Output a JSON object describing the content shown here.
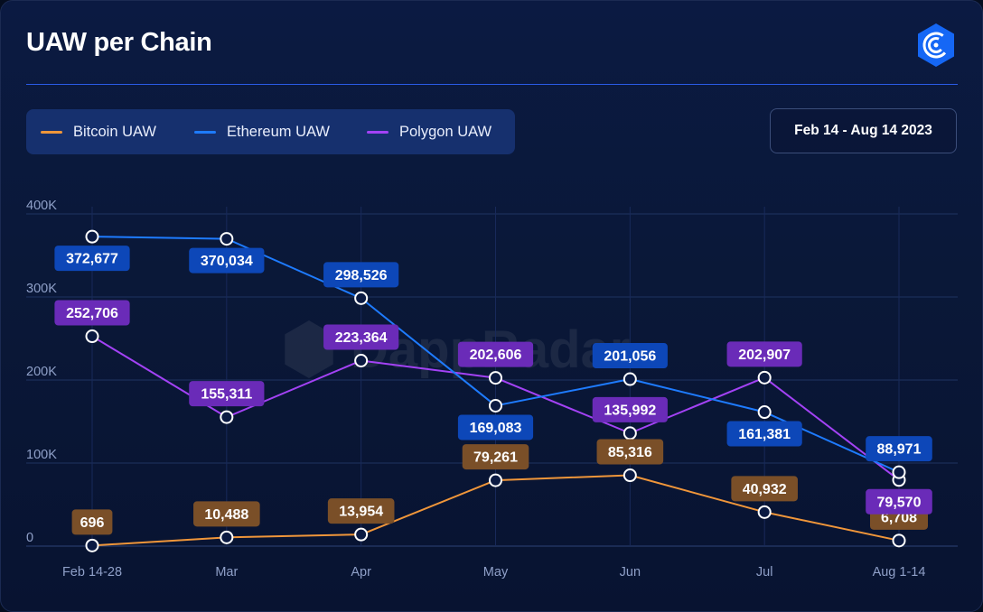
{
  "header": {
    "title": "UAW per Chain"
  },
  "logo": {
    "icon": "dappradar-logo-icon",
    "color": "#1567f5"
  },
  "watermark": {
    "text": "DappRadar"
  },
  "date_range": {
    "label": "Feb 14 - Aug 14 2023"
  },
  "legend": {
    "placement": "top-left",
    "items": [
      {
        "label": "Bitcoin UAW",
        "color": "#f0963a"
      },
      {
        "label": "Ethereum UAW",
        "color": "#1e7bff"
      },
      {
        "label": "Polygon UAW",
        "color": "#a342f5"
      }
    ]
  },
  "colors": {
    "background": "#0a1838",
    "grid": "#1f3361",
    "bitcoin_label_bg": "#7a4f28",
    "ethereum_label_bg": "#0d47b8",
    "polygon_label_bg": "#6a2bb8"
  },
  "chart_data": {
    "type": "line",
    "categories": [
      "Feb 14-28",
      "Mar",
      "Apr",
      "May",
      "Jun",
      "Jul",
      "Aug 1-14"
    ],
    "y_ticks": [
      {
        "value": 0,
        "label": "0"
      },
      {
        "value": 100000,
        "label": "100K"
      },
      {
        "value": 200000,
        "label": "200K"
      },
      {
        "value": 300000,
        "label": "300K"
      },
      {
        "value": 400000,
        "label": "400K"
      }
    ],
    "ylim": [
      0,
      400000
    ],
    "grid": true,
    "series": [
      {
        "name": "Bitcoin UAW",
        "color": "#f0963a",
        "label_bg": "#7a4f28",
        "values": [
          696,
          10488,
          13954,
          79261,
          85316,
          40932,
          6708
        ],
        "labels": [
          "696",
          "10,488",
          "13,954",
          "79,261",
          "85,316",
          "40,932",
          "6,708"
        ],
        "label_pos": [
          "above",
          "above",
          "above",
          "above",
          "above",
          "above",
          "above"
        ]
      },
      {
        "name": "Ethereum UAW",
        "color": "#1e7bff",
        "label_bg": "#0d47b8",
        "values": [
          372677,
          370034,
          298526,
          169083,
          201056,
          161381,
          88971
        ],
        "labels": [
          "372,677",
          "370,034",
          "298,526",
          "169,083",
          "201,056",
          "161,381",
          "88,971"
        ],
        "label_pos": [
          "below",
          "below",
          "above",
          "below",
          "above",
          "below",
          "above"
        ]
      },
      {
        "name": "Polygon UAW",
        "color": "#a342f5",
        "label_bg": "#6a2bb8",
        "values": [
          252706,
          155311,
          223364,
          202606,
          135992,
          202907,
          79570
        ],
        "labels": [
          "252,706",
          "155,311",
          "223,364",
          "202,606",
          "135,992",
          "202,907",
          "79,570"
        ],
        "label_pos": [
          "above",
          "above",
          "above",
          "above",
          "above",
          "above",
          "below"
        ]
      }
    ]
  }
}
